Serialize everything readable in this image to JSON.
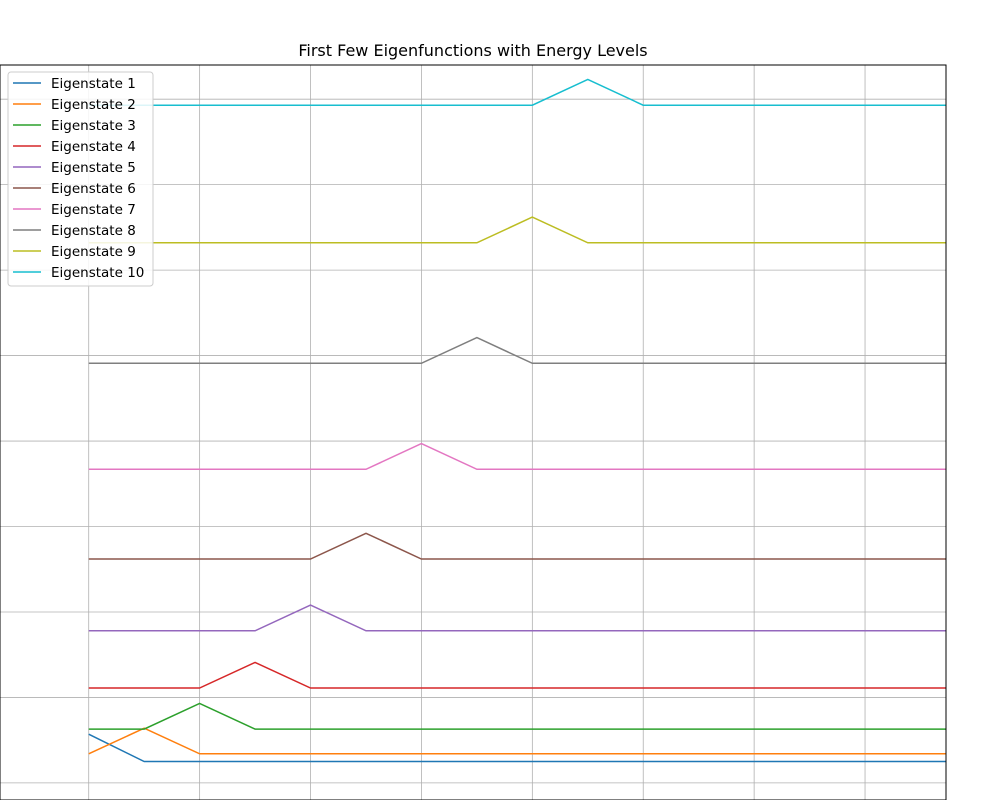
{
  "chart_data": {
    "type": "line",
    "title": "First Few Eigenfunctions with Energy Levels",
    "xlabel": "",
    "ylabel": "",
    "grid": true,
    "legend_position": "top-left",
    "x": [
      0,
      0.5,
      1,
      1.5,
      2,
      2.5,
      3,
      3.5,
      4,
      4.5,
      5,
      5.5,
      6,
      6.5,
      7,
      7.5,
      7.73
    ],
    "xlim": [
      -0.8,
      7.73
    ],
    "ylim": [
      9,
      52
    ],
    "series": [
      {
        "name": "Eigenstate 1",
        "color": "#1f77b4",
        "values": [
          12.85,
          11.25,
          11.25,
          11.25,
          11.25,
          11.25,
          11.25,
          11.25,
          11.25,
          11.25,
          11.25,
          11.25,
          11.25,
          11.25,
          11.25,
          11.25,
          11.25
        ]
      },
      {
        "name": "Eigenstate 2",
        "color": "#ff7f0e",
        "values": [
          11.7,
          13.2,
          11.7,
          11.7,
          11.7,
          11.7,
          11.7,
          11.7,
          11.7,
          11.7,
          11.7,
          11.7,
          11.7,
          11.7,
          11.7,
          11.7,
          11.7
        ]
      },
      {
        "name": "Eigenstate 3",
        "color": "#2ca02c",
        "values": [
          13.15,
          13.15,
          14.65,
          13.15,
          13.15,
          13.15,
          13.15,
          13.15,
          13.15,
          13.15,
          13.15,
          13.15,
          13.15,
          13.15,
          13.15,
          13.15,
          13.15
        ]
      },
      {
        "name": "Eigenstate 4",
        "color": "#d62728",
        "values": [
          15.55,
          15.55,
          15.55,
          17.05,
          15.55,
          15.55,
          15.55,
          15.55,
          15.55,
          15.55,
          15.55,
          15.55,
          15.55,
          15.55,
          15.55,
          15.55,
          15.55
        ]
      },
      {
        "name": "Eigenstate 5",
        "color": "#9467bd",
        "values": [
          18.9,
          18.9,
          18.9,
          18.9,
          20.4,
          18.9,
          18.9,
          18.9,
          18.9,
          18.9,
          18.9,
          18.9,
          18.9,
          18.9,
          18.9,
          18.9,
          18.9
        ]
      },
      {
        "name": "Eigenstate 6",
        "color": "#8c564b",
        "values": [
          23.1,
          23.1,
          23.1,
          23.1,
          23.1,
          24.6,
          23.1,
          23.1,
          23.1,
          23.1,
          23.1,
          23.1,
          23.1,
          23.1,
          23.1,
          23.1,
          23.1
        ]
      },
      {
        "name": "Eigenstate 7",
        "color": "#e377c2",
        "values": [
          28.35,
          28.35,
          28.35,
          28.35,
          28.35,
          28.35,
          29.85,
          28.35,
          28.35,
          28.35,
          28.35,
          28.35,
          28.35,
          28.35,
          28.35,
          28.35,
          28.35
        ]
      },
      {
        "name": "Eigenstate 8",
        "color": "#7f7f7f",
        "values": [
          34.55,
          34.55,
          34.55,
          34.55,
          34.55,
          34.55,
          34.55,
          36.05,
          34.55,
          34.55,
          34.55,
          34.55,
          34.55,
          34.55,
          34.55,
          34.55,
          34.55
        ]
      },
      {
        "name": "Eigenstate 9",
        "color": "#bcbd22",
        "values": [
          41.6,
          41.6,
          41.6,
          41.6,
          41.6,
          41.6,
          41.6,
          41.6,
          43.1,
          41.6,
          41.6,
          41.6,
          41.6,
          41.6,
          41.6,
          41.6,
          41.6
        ]
      },
      {
        "name": "Eigenstate 10",
        "color": "#17becf",
        "values": [
          49.65,
          49.65,
          49.65,
          49.65,
          49.65,
          49.65,
          49.65,
          49.65,
          49.65,
          51.15,
          49.65,
          49.65,
          49.65,
          49.65,
          49.65,
          49.65,
          49.65
        ]
      }
    ]
  }
}
